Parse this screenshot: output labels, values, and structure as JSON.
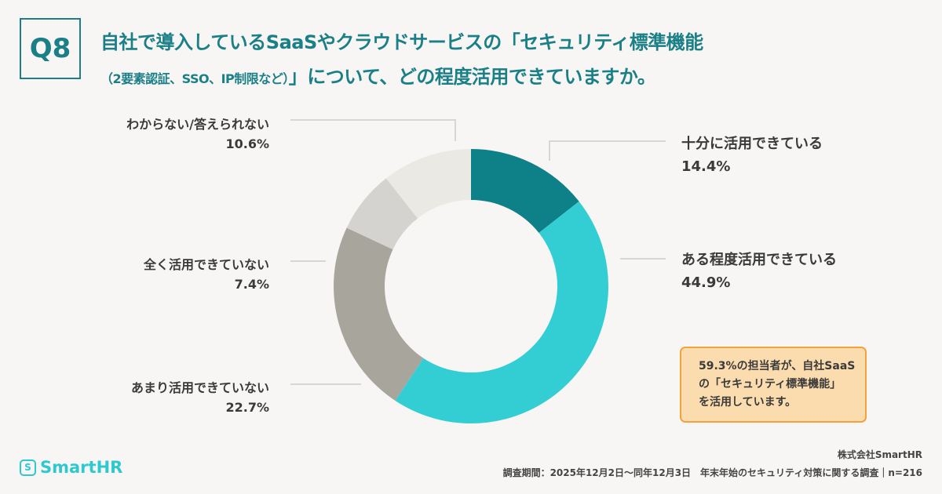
{
  "question_number": "Q8",
  "title": {
    "line1": "自社で導入しているSaaSやクラウドサービスの「セキュリティ標準機能",
    "line2_sub": "（2要素認証、SSO、IP制限など）",
    "line2": "」について、どの程度活用できていますか。"
  },
  "chart_data": {
    "type": "pie",
    "donut": true,
    "start": "top",
    "direction": "clockwise",
    "series": [
      {
        "label": "十分に活用できている",
        "value": 14.4,
        "display": "14.4%",
        "color": "#0e8087"
      },
      {
        "label": "ある程度活用できている",
        "value": 44.9,
        "display": "44.9%",
        "color": "#33ced4"
      },
      {
        "label": "あまり活用できていない",
        "value": 22.7,
        "display": "22.7%",
        "color": "#a8a59d"
      },
      {
        "label": "全く活用できていない",
        "value": 7.4,
        "display": "7.4%",
        "color": "#d5d3d0"
      },
      {
        "label": "わからない/答えられない",
        "value": 10.6,
        "display": "10.6%",
        "color": "#ebe9e4"
      }
    ]
  },
  "callout": {
    "line1": "59.3%の担当者が、自社SaaS",
    "line2": "の「セキュリティ標準機能」",
    "line3": "を活用しています。"
  },
  "logo": {
    "mark": "S",
    "text": "SmartHR"
  },
  "footer": {
    "company": "株式会社SmartHR",
    "survey": "調査期間：2025年12月2日〜同年12月3日　年末年始のセキュリティ対策に関する調査｜n=216"
  }
}
